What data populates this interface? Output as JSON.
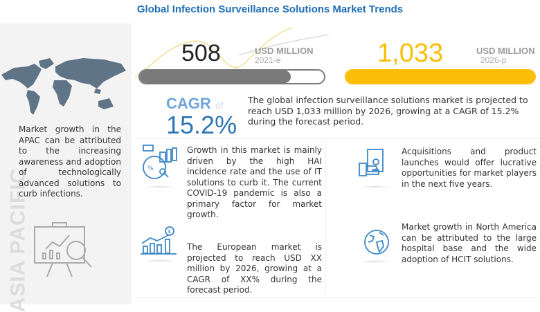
{
  "title": "Global Infection Surveillance Solutions Market Trends",
  "left_panel": {
    "region_label": "ASIA PACIFIC",
    "text": "Market growth in the APAC can be attributed to the increasing awareness and adoption of technologically advanced solutions to curb infections.",
    "icons": [
      "world-map",
      "presentation-analytics"
    ]
  },
  "market_size": {
    "start": {
      "value": "508",
      "unit": "USD MILLION",
      "year": "2021-e",
      "bar_fill_pct": 82,
      "color": "#7a7a7a"
    },
    "end": {
      "value": "1,033",
      "unit": "USD MILLION",
      "year": "2026-p",
      "bar_fill_pct": 100,
      "color": "#fbbd08"
    }
  },
  "cagr": {
    "label": "CAGR",
    "of": "of",
    "value": "15.2%",
    "color": "#2e75b6"
  },
  "summary": "The global infection surveillance solutions market is projected to reach USD 1,033 million by 2026, growing at a CAGR of 15.2% during the forecast period.",
  "insights": [
    {
      "icon": "analytics-icon",
      "text": "Growth in this market is mainly driven by the high HAI incidence rate and the use of IT solutions to curb it. The current COVID-19 pandemic is also a primary factor for market growth."
    },
    {
      "icon": "growth-chart-icon",
      "text": "The European market is projected to reach USD XX million by 2026, growing at a CAGR of XX% during the forecast period."
    },
    {
      "icon": "money-hand-icon",
      "text": "Acquisitions and product launches would offer lucrative opportunities for market players in the next five years."
    },
    {
      "icon": "globe-icon",
      "text": "Market growth in North America can be attributed to the large hospital base and the wide adoption of HCIT solutions."
    }
  ],
  "accent_color": "#3a86c8"
}
